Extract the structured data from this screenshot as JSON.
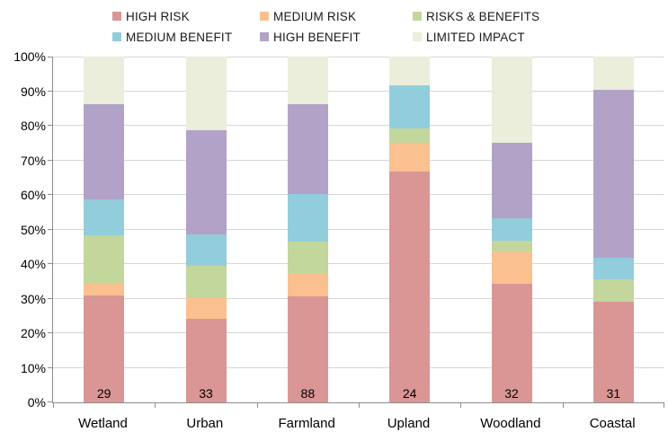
{
  "chart_data": {
    "type": "bar",
    "variant": "100-percent-stacked-column",
    "title": "",
    "xlabel": "",
    "ylabel": "",
    "categories": [
      "Wetland",
      "Urban",
      "Farmland",
      "Upland",
      "Woodland",
      "Coastal"
    ],
    "bar_counts": [
      "29",
      "33",
      "88",
      "24",
      "32",
      "31"
    ],
    "series": [
      {
        "name": "HIGH RISK",
        "color": "#D99694",
        "values": [
          31.03,
          24.24,
          30.68,
          66.67,
          34.38,
          29.03
        ]
      },
      {
        "name": "MEDIUM RISK",
        "color": "#FAC090",
        "values": [
          3.45,
          6.06,
          6.82,
          8.33,
          9.38,
          0
        ]
      },
      {
        "name": "RISKS & BENEFITS",
        "color": "#C3D69B",
        "values": [
          13.79,
          9.09,
          9.09,
          4.17,
          3.13,
          6.45
        ]
      },
      {
        "name": "MEDIUM BENEFIT",
        "color": "#92CDDC",
        "values": [
          10.34,
          9.09,
          13.64,
          12.5,
          6.25,
          6.45
        ]
      },
      {
        "name": "HIGH BENEFIT",
        "color": "#B2A2C7",
        "values": [
          27.59,
          30.3,
          26.14,
          0,
          21.88,
          48.39
        ]
      },
      {
        "name": "LIMITED IMPACT",
        "color": "#EBEEDB",
        "values": [
          13.79,
          21.21,
          13.64,
          8.33,
          25.0,
          9.68
        ]
      }
    ],
    "y_ticks": [
      "0%",
      "10%",
      "20%",
      "30%",
      "40%",
      "50%",
      "60%",
      "70%",
      "80%",
      "90%",
      "100%"
    ],
    "ylim": [
      0,
      100
    ],
    "grid": "horizontal",
    "legend_position": "top"
  },
  "style_colors": {
    "axis": "#8c8c8c",
    "gridline": "#d6d6d6",
    "text": "#000000",
    "background": "#ffffff"
  }
}
